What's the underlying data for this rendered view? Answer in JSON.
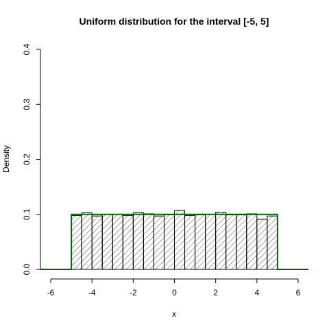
{
  "chart_data": {
    "type": "bar",
    "title": "Uniform distribution for the interval [-5, 5]",
    "xlabel": "x",
    "ylabel": "Density",
    "xlim": [
      -6.5,
      6.5
    ],
    "ylim": [
      0,
      0.4
    ],
    "x_ticks": [
      -6,
      -4,
      -2,
      0,
      2,
      4,
      6
    ],
    "x_tick_labels": [
      "-6",
      "-4",
      "-2",
      "0",
      "2",
      "4",
      "6"
    ],
    "y_ticks": [
      0,
      0.1,
      0.2,
      0.3,
      0.4
    ],
    "y_tick_labels": [
      "0.0",
      "0.1",
      "0.2",
      "0.3",
      "0.4"
    ],
    "histogram": {
      "bin_edges": [
        -5,
        -4.5,
        -4,
        -3.5,
        -3,
        -2.5,
        -2,
        -1.5,
        -1,
        -0.5,
        0,
        0.5,
        1,
        1.5,
        2,
        2.5,
        3,
        3.5,
        4,
        4.5,
        5
      ],
      "densities": [
        0.098,
        0.103,
        0.097,
        0.1,
        0.1,
        0.098,
        0.103,
        0.101,
        0.097,
        0.099,
        0.107,
        0.098,
        0.099,
        0.1,
        0.104,
        0.099,
        0.099,
        0.101,
        0.091,
        0.097
      ],
      "fill": "diagonal-hatch",
      "color": "#000000"
    },
    "density_curve": {
      "x": [
        -6.5,
        -5,
        -5,
        5,
        5,
        6.5
      ],
      "y": [
        0,
        0,
        0.1,
        0.1,
        0,
        0
      ],
      "color": "#006400"
    }
  }
}
